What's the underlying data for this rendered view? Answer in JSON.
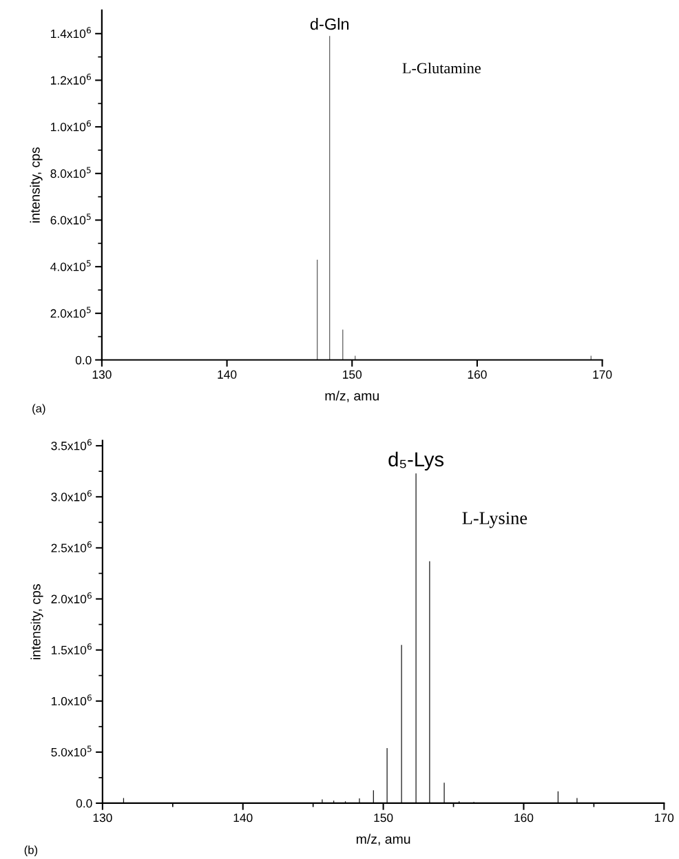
{
  "chart_data": [
    {
      "type": "bar",
      "xlabel": "m/z, amu",
      "ylabel": "intensity, cps",
      "x": [
        147.22,
        148.21,
        149.26,
        150.25,
        169.1
      ],
      "series": [
        {
          "color": "#444444",
          "values": [
            430000,
            1390000,
            130000,
            18000,
            18000
          ]
        }
      ],
      "xlim": [
        130,
        170
      ],
      "xticks": [
        130,
        140,
        150,
        160,
        170
      ],
      "ylim": [
        0,
        1500000
      ],
      "yticks": [
        {
          "value": 0,
          "label": "0.0"
        },
        {
          "value": 100000,
          "label": null
        },
        {
          "value": 200000,
          "label": "2.0x10$^{5}$"
        },
        {
          "value": 300000,
          "label": null
        },
        {
          "value": 400000,
          "label": "4.0x10$^{5}$"
        },
        {
          "value": 500000,
          "label": null
        },
        {
          "value": 600000,
          "label": "6.0x10$^{5}$"
        },
        {
          "value": 700000,
          "label": null
        },
        {
          "value": 800000,
          "label": "8.0x10$^{5}$"
        },
        {
          "value": 900000,
          "label": null
        },
        {
          "value": 1000000,
          "label": "1.0x10$^{6}$"
        },
        {
          "value": 1100000,
          "label": null
        },
        {
          "value": 1200000,
          "label": "1.2x10$^{6}$"
        },
        {
          "value": 1300000,
          "label": null
        },
        {
          "value": 1400000,
          "label": "1.4x10$^{6}$"
        }
      ],
      "annotations": [
        {
          "text": "d-Gln",
          "x": 148.21,
          "y": 1390000
        },
        "L-Glutamine",
        "(a)"
      ]
    },
    {
      "type": "bar",
      "xlabel": "m/z, amu",
      "ylabel": "intensity, cps",
      "x": [
        131.5,
        145.65,
        146.47,
        147.3,
        148.3,
        149.3,
        150.27,
        151.3,
        152.33,
        153.3,
        154.34,
        155.4,
        156.45,
        162.45,
        163.8
      ],
      "series": [
        {
          "color": "#111111",
          "values": [
            50000,
            36000,
            25000,
            18000,
            47000,
            126000,
            540000,
            1550000,
            3230000,
            2370000,
            200000,
            18000,
            11000,
            116000,
            50000
          ]
        }
      ],
      "xlim": [
        130,
        170
      ],
      "xticks": [
        130,
        {
          "value": 135,
          "label": null
        },
        140,
        {
          "value": 145,
          "label": null
        },
        150,
        {
          "value": 155,
          "label": null
        },
        160,
        {
          "value": 165,
          "label": null
        },
        170
      ],
      "ylim": [
        0,
        3550000
      ],
      "yticks": [
        {
          "value": 0,
          "label": "0.0"
        },
        {
          "value": 250000,
          "label": null
        },
        {
          "value": 500000,
          "label": "5.0x10$^{5}$"
        },
        {
          "value": 750000,
          "label": null
        },
        {
          "value": 1000000,
          "label": "1.0x10$^{6}$"
        },
        {
          "value": 1250000,
          "label": null
        },
        {
          "value": 1500000,
          "label": "1.5x10$^{6}$"
        },
        {
          "value": 1750000,
          "label": null
        },
        {
          "value": 2000000,
          "label": "2.0x10$^{6}$"
        },
        {
          "value": 2250000,
          "label": null
        },
        {
          "value": 2500000,
          "label": "2.5x10$^{6}$"
        },
        {
          "value": 2750000,
          "label": null
        },
        {
          "value": 3000000,
          "label": "3.0x10$^{6}$"
        },
        {
          "value": 3250000,
          "label": null
        },
        {
          "value": 3500000,
          "label": "3.5x10$^{6}$"
        }
      ],
      "annotations": [
        {
          "text": "d₅-Lys",
          "x": 152.33,
          "y": 3230000
        },
        "L-Lysine",
        "(b)"
      ]
    }
  ]
}
